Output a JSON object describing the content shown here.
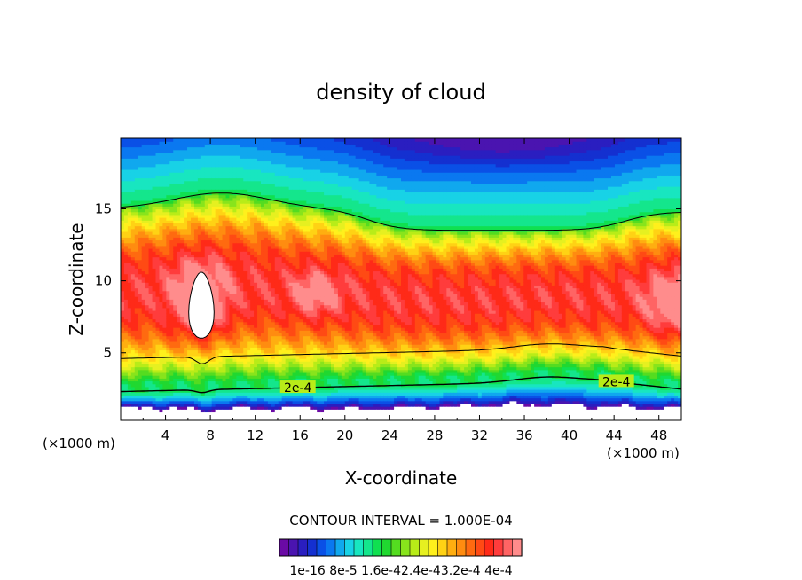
{
  "chart_data": {
    "type": "heatmap",
    "title": "density of cloud",
    "xlabel": "X-coordinate",
    "ylabel": "Z-coordinate",
    "x_unit_left": "(×1000 m)",
    "x_unit_right": "(×1000 m)",
    "xlim": [
      0,
      50
    ],
    "ylim": [
      0.3,
      19.9
    ],
    "x_ticks": [
      4,
      8,
      12,
      16,
      20,
      24,
      28,
      32,
      36,
      40,
      44,
      48
    ],
    "y_ticks": [
      5,
      10,
      15
    ],
    "contour_label": "2e-4",
    "contour_interval_text": "CONTOUR INTERVAL = 1.000E-04",
    "colorbar_labels": [
      "1e-16",
      "8e-5",
      "1.6e-4",
      "2.4e-4",
      "3.2e-4",
      "4e-4"
    ],
    "colorbar_label_string": "1e-16 8e-5 1.6e-42.4e-43.2e-4 4e-4",
    "levels": {
      "count": 26,
      "max": 0.0004,
      "step": 1.6e-05
    },
    "field_profile": [
      {
        "x": 0,
        "z_bottom": 1.2,
        "z_2e4": 2.3,
        "z_top_contour": 15.0
      },
      {
        "x": 8,
        "z_bottom": 1.0,
        "z_2e4": 2.4,
        "z_top_contour": 16.1
      },
      {
        "x": 16,
        "z_bottom": 1.1,
        "z_2e4": 2.7,
        "z_top_contour": 15.2
      },
      {
        "x": 24,
        "z_bottom": 1.2,
        "z_2e4": 2.9,
        "z_top_contour": 13.4
      },
      {
        "x": 32,
        "z_bottom": 1.4,
        "z_2e4": 3.0,
        "z_top_contour": 13.3
      },
      {
        "x": 40,
        "z_bottom": 1.5,
        "z_2e4": 3.3,
        "z_top_contour": 13.6
      },
      {
        "x": 48,
        "z_bottom": 1.2,
        "z_2e4": 2.4,
        "z_top_contour": 14.8
      }
    ],
    "grid": false,
    "colors": {
      "palette": [
        "#6a0aa5",
        "#4a14b0",
        "#2a1ec0",
        "#1430d0",
        "#0a50e6",
        "#0a78f0",
        "#10a8ee",
        "#18d2e6",
        "#18e6c0",
        "#14e68c",
        "#10e050",
        "#20d830",
        "#54dc20",
        "#88e41c",
        "#b8ec18",
        "#e6f020",
        "#fff01c",
        "#ffd214",
        "#ffae10",
        "#ff8c10",
        "#ff6a10",
        "#ff4a14",
        "#ff2a18",
        "#ff3c3c",
        "#ff6464",
        "#ff8c8c"
      ],
      "white_region": "#ffffff",
      "contour_line": "#000000"
    }
  }
}
